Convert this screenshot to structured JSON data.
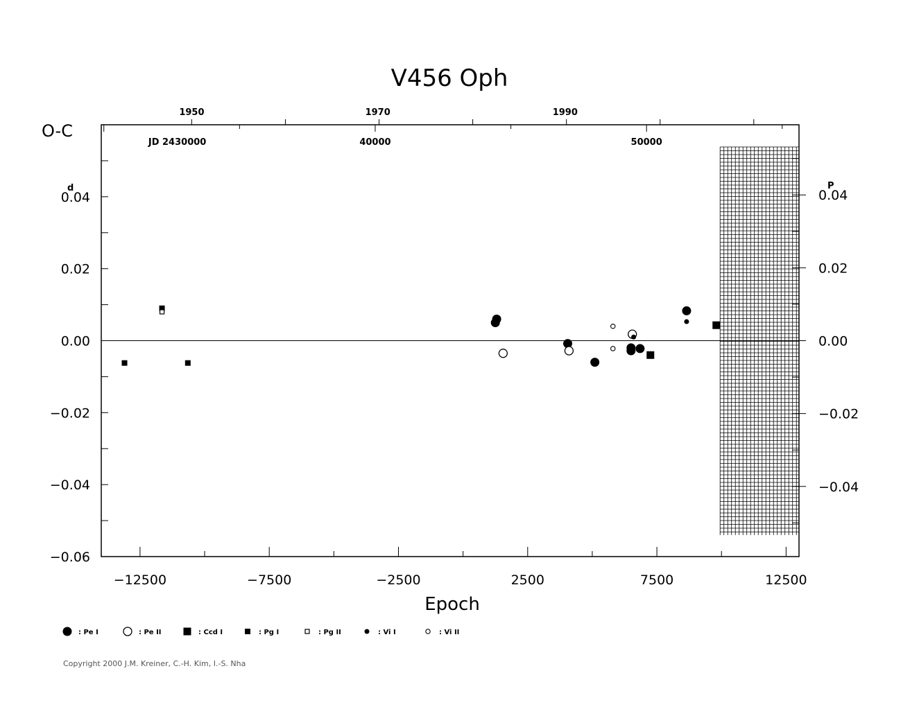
{
  "chart_data": {
    "type": "scatter",
    "title": "V456 Oph",
    "ylabel": "O-C",
    "ylabel_unit_left": "d",
    "ylabel_unit_right": "P",
    "xlabel": "Epoch",
    "xlim": [
      -14000,
      13000
    ],
    "ylim": [
      -0.06,
      0.06
    ],
    "x_ticks": [
      -12500,
      -7500,
      -2500,
      2500,
      7500,
      12500
    ],
    "x_tick_labels": [
      "−12500",
      "−7500",
      "−2500",
      "2500",
      "7500",
      "12500"
    ],
    "y_ticks_left": [
      0.04,
      0.02,
      0.0,
      -0.02,
      -0.04,
      -0.06
    ],
    "y_tick_labels_left": [
      "0.04",
      "0.02",
      "0.00",
      "−0.02",
      "−0.04",
      "−0.06"
    ],
    "y_ticks_right_phase": [
      0.04,
      0.02,
      0.0,
      -0.02,
      -0.04
    ],
    "y_tick_labels_right": [
      "0.04",
      "0.02",
      "0.00",
      "−0.02",
      "−0.04"
    ],
    "top_year_labels": [
      {
        "year": "1950",
        "epoch": -10500
      },
      {
        "year": "1970",
        "epoch": -3300
      },
      {
        "year": "1990",
        "epoch": 3950
      }
    ],
    "top_jd_labels": [
      {
        "label": "JD  2430000",
        "epoch": -12400
      },
      {
        "label": "40000",
        "epoch": -3400
      },
      {
        "label": "50000",
        "epoch": 7100
      }
    ],
    "grid_region_epoch": [
      10000,
      13000
    ],
    "series": [
      {
        "name": ": Pe I",
        "marker": "filled-circle-large",
        "points": [
          [
            1250,
            0.005
          ],
          [
            1300,
            0.006
          ],
          [
            4050,
            -0.0008
          ],
          [
            5100,
            -0.006
          ],
          [
            6500,
            -0.002
          ],
          [
            6500,
            -0.0028
          ],
          [
            6850,
            -0.0022
          ],
          [
            8650,
            0.0083
          ]
        ]
      },
      {
        "name": ": Pe II",
        "marker": "open-circle-large",
        "points": [
          [
            1550,
            -0.0035
          ],
          [
            4100,
            -0.0028
          ],
          [
            6550,
            0.0018
          ]
        ]
      },
      {
        "name": ": Ccd I",
        "marker": "filled-square-large",
        "points": [
          [
            7250,
            -0.004
          ],
          [
            9800,
            0.0043
          ]
        ]
      },
      {
        "name": ": Pg I",
        "marker": "filled-square-small",
        "points": [
          [
            -13100,
            -0.0062
          ],
          [
            -11650,
            0.009
          ],
          [
            -10650,
            -0.0062
          ]
        ]
      },
      {
        "name": ": Pg II",
        "marker": "open-square-small",
        "points": [
          [
            -11650,
            0.008
          ]
        ]
      },
      {
        "name": ": Vi I",
        "marker": "filled-circle-small",
        "points": [
          [
            8650,
            0.0053
          ],
          [
            6600,
            0.001
          ]
        ]
      },
      {
        "name": ": Vi II",
        "marker": "open-circle-small",
        "points": [
          [
            5800,
            0.004
          ],
          [
            5800,
            -0.0022
          ]
        ]
      }
    ]
  },
  "copyright": "Copyright 2000 J.M. Kreiner, C.-H. Kim, I.-S. Nha"
}
